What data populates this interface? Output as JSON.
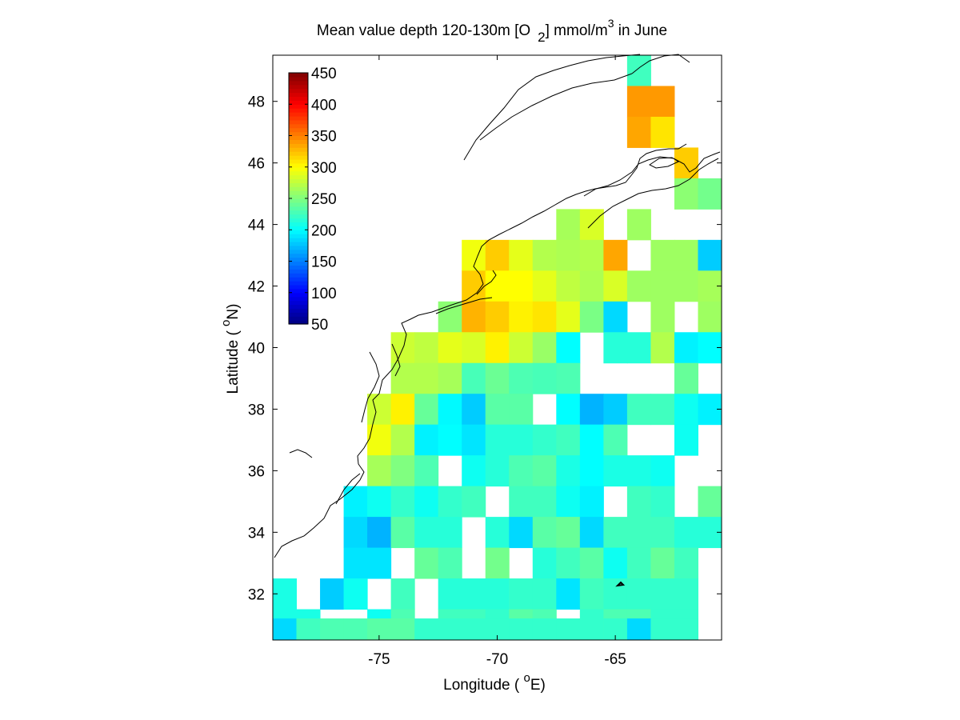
{
  "figure": {
    "title_main": "Mean value depth 120-130m [O",
    "title_sub": "2",
    "title_mid": "] mmol/m",
    "title_sup": "3",
    "title_end": " in June",
    "xlabel_pre": "Longitude ( ",
    "xlabel_deg": "o",
    "xlabel_post": "E)",
    "ylabel_pre": "Latitude ( ",
    "ylabel_deg": "o",
    "ylabel_post": "N)"
  },
  "colorbar": {
    "min": 50,
    "max": 450,
    "ticks": [
      {
        "value": 450,
        "label": "450"
      },
      {
        "value": 400,
        "label": "400"
      },
      {
        "value": 350,
        "label": "350"
      },
      {
        "value": 300,
        "label": "300"
      },
      {
        "value": 250,
        "label": "250"
      },
      {
        "value": 200,
        "label": "200"
      },
      {
        "value": 150,
        "label": "150"
      },
      {
        "value": 100,
        "label": "100"
      },
      {
        "value": 50,
        "label": "50"
      }
    ],
    "colormap": "jet"
  },
  "chart_data": {
    "type": "heatmap",
    "xlim": [
      -79.5,
      -60.5
    ],
    "ylim": [
      30.5,
      49.5
    ],
    "x_ticks": [
      {
        "value": -75,
        "label": "-75"
      },
      {
        "value": -70,
        "label": "-70"
      },
      {
        "value": -65,
        "label": "-65"
      }
    ],
    "y_ticks": [
      {
        "value": 32,
        "label": "32"
      },
      {
        "value": 34,
        "label": "34"
      },
      {
        "value": 36,
        "label": "36"
      },
      {
        "value": 38,
        "label": "38"
      },
      {
        "value": 40,
        "label": "40"
      },
      {
        "value": 42,
        "label": "42"
      },
      {
        "value": 44,
        "label": "44"
      },
      {
        "value": 46,
        "label": "46"
      },
      {
        "value": 48,
        "label": "48"
      }
    ],
    "cell_size_deg": 1,
    "x_centers": [
      -79,
      -78,
      -77,
      -76,
      -75,
      -74,
      -73,
      -72,
      -71,
      -70,
      -69,
      -68,
      -67,
      -66,
      -65,
      -64,
      -63,
      -62,
      -61
    ],
    "rows": [
      {
        "lat": 49,
        "values": [
          null,
          null,
          null,
          null,
          null,
          null,
          null,
          null,
          null,
          null,
          null,
          null,
          null,
          null,
          null,
          225,
          null,
          null,
          null
        ]
      },
      {
        "lat": 48,
        "values": [
          null,
          null,
          null,
          null,
          null,
          null,
          null,
          null,
          null,
          null,
          null,
          null,
          null,
          null,
          null,
          340,
          340,
          null,
          null
        ]
      },
      {
        "lat": 47,
        "values": [
          null,
          null,
          null,
          null,
          null,
          null,
          null,
          null,
          null,
          null,
          null,
          null,
          null,
          null,
          null,
          335,
          310,
          null,
          null
        ]
      },
      {
        "lat": 46,
        "values": [
          null,
          null,
          null,
          null,
          null,
          null,
          null,
          null,
          null,
          null,
          null,
          null,
          null,
          null,
          null,
          null,
          null,
          320,
          null
        ]
      },
      {
        "lat": 45,
        "values": [
          null,
          null,
          null,
          null,
          null,
          null,
          null,
          null,
          null,
          null,
          null,
          null,
          null,
          null,
          null,
          null,
          null,
          255,
          245
        ]
      },
      {
        "lat": 44,
        "values": [
          null,
          null,
          null,
          null,
          null,
          null,
          null,
          null,
          null,
          null,
          null,
          null,
          265,
          285,
          null,
          262,
          null,
          null,
          null
        ]
      },
      {
        "lat": 43,
        "values": [
          null,
          null,
          null,
          null,
          null,
          null,
          null,
          null,
          295,
          320,
          290,
          270,
          268,
          270,
          335,
          null,
          262,
          262,
          180
        ]
      },
      {
        "lat": 42,
        "values": [
          null,
          null,
          null,
          null,
          null,
          null,
          null,
          null,
          320,
          300,
          300,
          290,
          275,
          268,
          285,
          262,
          262,
          262,
          265
        ]
      },
      {
        "lat": 41,
        "values": [
          null,
          null,
          null,
          null,
          null,
          null,
          null,
          255,
          330,
          320,
          305,
          310,
          290,
          248,
          185,
          null,
          262,
          null,
          262
        ]
      },
      {
        "lat": 40,
        "values": [
          null,
          null,
          null,
          null,
          null,
          280,
          275,
          290,
          285,
          305,
          280,
          260,
          200,
          null,
          215,
          215,
          270,
          195,
          200
        ]
      },
      {
        "lat": 39,
        "values": [
          null,
          null,
          null,
          null,
          null,
          270,
          270,
          265,
          228,
          242,
          230,
          228,
          230,
          null,
          null,
          null,
          null,
          240,
          null
        ]
      },
      {
        "lat": 38,
        "values": [
          null,
          null,
          null,
          null,
          280,
          305,
          240,
          198,
          180,
          235,
          235,
          null,
          200,
          170,
          180,
          225,
          225,
          205,
          195
        ]
      },
      {
        "lat": 37,
        "values": [
          null,
          null,
          null,
          null,
          295,
          270,
          195,
          200,
          190,
          215,
          215,
          220,
          225,
          200,
          230,
          null,
          null,
          205,
          null
        ]
      },
      {
        "lat": 36,
        "values": [
          null,
          null,
          null,
          null,
          265,
          250,
          230,
          null,
          205,
          215,
          230,
          235,
          210,
          200,
          210,
          210,
          205,
          null,
          null
        ]
      },
      {
        "lat": 35,
        "values": [
          null,
          null,
          null,
          195,
          205,
          220,
          205,
          220,
          225,
          null,
          225,
          225,
          205,
          195,
          null,
          225,
          220,
          null,
          240
        ]
      },
      {
        "lat": 34,
        "values": [
          null,
          null,
          null,
          185,
          170,
          235,
          215,
          215,
          null,
          215,
          185,
          235,
          240,
          185,
          225,
          225,
          225,
          215,
          215
        ]
      },
      {
        "lat": 33,
        "values": [
          null,
          null,
          null,
          190,
          190,
          null,
          240,
          230,
          null,
          245,
          null,
          215,
          225,
          235,
          205,
          225,
          240,
          225,
          null
        ]
      },
      {
        "lat": 32,
        "values": [
          210,
          null,
          180,
          205,
          null,
          225,
          null,
          215,
          215,
          215,
          220,
          220,
          190,
          225,
          220,
          220,
          220,
          220,
          null
        ]
      },
      {
        "lat": 31,
        "values": [
          210,
          210,
          null,
          null,
          205,
          230,
          null,
          225,
          225,
          220,
          235,
          230,
          null,
          220,
          230,
          230,
          220,
          220,
          null
        ]
      },
      {
        "lat": 30.7,
        "values": [
          185,
          225,
          230,
          230,
          235,
          235,
          220,
          220,
          220,
          220,
          220,
          220,
          220,
          null,
          220,
          185,
          220,
          220,
          null
        ]
      }
    ]
  }
}
